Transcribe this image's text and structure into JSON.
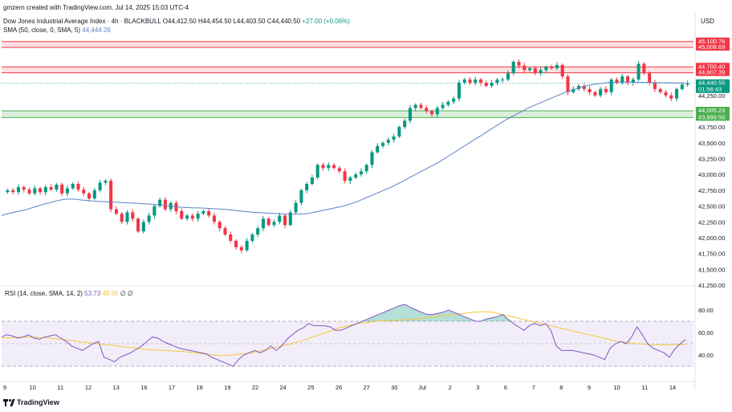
{
  "attribution": "gmzern created with TradingView.com, Jul 14, 2025 15:03 UTC-4",
  "legend": {
    "symbol": "Dow Jones Industrial Average Index · 4h · BLACKBULL",
    "open": "O44,412.50",
    "high": "H44,454.50",
    "low": "L44,403.50",
    "close": "C44,440.50",
    "change": "+27.00 (+0.06%)",
    "sma": "SMA (50, close, 0, SMA, 5)",
    "sma_value": "44,444.26"
  },
  "rsi_legend": {
    "label": "RSI (14, close, SMA, 14, 2)",
    "rsi_value": "53.73",
    "sma_value": "49.35",
    "z1": "∅",
    "z2": "∅"
  },
  "currency": "USD",
  "footer_brand": "TradingView",
  "colors": {
    "up": "#089981",
    "down": "#f23645",
    "sma": "#5b82c7",
    "rsi": "#7e57c2",
    "rsi_ma": "#f5c73c",
    "resistance": "#f23645",
    "support": "#4caf50"
  },
  "price_labels": [
    {
      "value": 45100.76,
      "text": "45,100.76",
      "color": "#f23645"
    },
    {
      "value": 45008.69,
      "text": "45,008.69",
      "color": "#f23645"
    },
    {
      "value": 44700.4,
      "text": "44,700.40",
      "color": "#f23645"
    },
    {
      "value": 44607.39,
      "text": "44,607.39",
      "color": "#f23645"
    },
    {
      "value": 44440.5,
      "text": "44,440.50",
      "color": "#089981",
      "sub": "01:56:43"
    },
    {
      "value": 44005.23,
      "text": "44,005.23",
      "color": "#4caf50"
    },
    {
      "value": 43899.5,
      "text": "43,899.50",
      "color": "#4caf50"
    }
  ],
  "chart_data": [
    {
      "type": "candlestick",
      "title": "Dow Jones Industrial Average Index · 4h · BLACKBULL",
      "ylim": [
        41250,
        45250
      ],
      "y_ticks": [
        "44,250.00",
        "44,000.00",
        "43,750.00",
        "43,500.00",
        "43,250.00",
        "43,000.00",
        "42,750.00",
        "42,500.00",
        "42,250.00",
        "42,000.00",
        "41,750.00",
        "41,500.00",
        "41,250.00"
      ],
      "y_tick_values": [
        44250,
        44000,
        43750,
        43500,
        43250,
        43000,
        42750,
        42500,
        42250,
        42000,
        41750,
        41500,
        41250
      ],
      "x_ticks": [
        "9",
        "10",
        "11",
        "12",
        "13",
        "16",
        "17",
        "18",
        "19",
        "22",
        "24",
        "25",
        "26",
        "27",
        "30",
        "Jul",
        "2",
        "3",
        "6",
        "7",
        "8",
        "9",
        "10",
        "11",
        "14"
      ],
      "resistance_zones": [
        [
          45008.69,
          45100.76
        ],
        [
          44607.39,
          44700.4
        ]
      ],
      "support_zones": [
        [
          43899.5,
          44005.23
        ]
      ],
      "current_price": 44440.5,
      "closes": [
        42750,
        42720,
        42800,
        42760,
        42700,
        42780,
        42720,
        42800,
        42760,
        42840,
        42700,
        42780,
        42850,
        42760,
        42700,
        42620,
        42750,
        42870,
        42900,
        42450,
        42380,
        42250,
        42400,
        42300,
        42100,
        42250,
        42350,
        42500,
        42600,
        42450,
        42550,
        42420,
        42300,
        42350,
        42300,
        42380,
        42420,
        42350,
        42250,
        42150,
        42050,
        41950,
        41850,
        41800,
        41950,
        42050,
        42150,
        42300,
        42200,
        42250,
        42350,
        42200,
        42400,
        42550,
        42750,
        42850,
        42950,
        43150,
        43100,
        43150,
        43100,
        43050,
        42900,
        42950,
        43000,
        43050,
        43150,
        43350,
        43450,
        43500,
        43550,
        43600,
        43750,
        43850,
        44050,
        44100,
        44050,
        44000,
        43950,
        44050,
        44100,
        44150,
        44200,
        44450,
        44500,
        44450,
        44500,
        44450,
        44400,
        44450,
        44500,
        44500,
        44600,
        44780,
        44720,
        44650,
        44680,
        44600,
        44650,
        44700,
        44680,
        44730,
        44550,
        44300,
        44350,
        44400,
        44350,
        44300,
        44250,
        44350,
        44300,
        44500,
        44450,
        44550,
        44450,
        44500,
        44750,
        44600,
        44450,
        44350,
        44300,
        44250,
        44200,
        44350,
        44420,
        44440
      ],
      "sma_values": [
        42350,
        42380,
        42400,
        42420,
        42440,
        42470,
        42500,
        42530,
        42550,
        42580,
        42600,
        42610,
        42610,
        42600,
        42590,
        42580,
        42575,
        42570,
        42565,
        42560,
        42555,
        42550,
        42545,
        42540,
        42535,
        42530,
        42520,
        42510,
        42500,
        42490,
        42480,
        42475,
        42470,
        42470,
        42465,
        42460,
        42455,
        42450,
        42440,
        42430,
        42420,
        42410,
        42400,
        42395,
        42390,
        42385,
        42380,
        42375,
        42370,
        42370,
        42375,
        42380,
        42400,
        42420,
        42440,
        42460,
        42480,
        42500,
        42530,
        42560,
        42600,
        42640,
        42680,
        42720,
        42760,
        42800,
        42850,
        42900,
        42950,
        43000,
        43050,
        43100,
        43150,
        43200,
        43260,
        43320,
        43380,
        43440,
        43500,
        43560,
        43620,
        43680,
        43740,
        43800,
        43860,
        43910,
        43960,
        44010,
        44060,
        44100,
        44140,
        44180,
        44220,
        44260,
        44300,
        44330,
        44360,
        44390,
        44410,
        44430,
        44440,
        44450,
        44455,
        44460,
        44462,
        44460,
        44458,
        44455,
        44452,
        44450,
        44450,
        44450,
        44448,
        44446,
        44444
      ]
    },
    {
      "type": "line",
      "title": "RSI (14, close, SMA, 14, 2)",
      "ylim": [
        20,
        100
      ],
      "y_ticks": [
        "80.00",
        "60.00",
        "40.00"
      ],
      "y_tick_values": [
        80,
        60,
        40
      ],
      "band": [
        30,
        70
      ],
      "series": [
        {
          "name": "RSI",
          "values": [
            56,
            58,
            57,
            55,
            56,
            58,
            55,
            54,
            56,
            57,
            58,
            55,
            52,
            48,
            46,
            44,
            47,
            50,
            52,
            38,
            36,
            34,
            38,
            40,
            42,
            45,
            48,
            52,
            56,
            55,
            52,
            50,
            48,
            46,
            45,
            44,
            43,
            42,
            41,
            38,
            36,
            34,
            32,
            30,
            36,
            40,
            42,
            44,
            42,
            44,
            48,
            44,
            48,
            54,
            58,
            62,
            64,
            68,
            66,
            66,
            66,
            65,
            62,
            62,
            64,
            66,
            68,
            70,
            72,
            74,
            76,
            78,
            80,
            82,
            84,
            85,
            82,
            80,
            78,
            76,
            76,
            77,
            78,
            80,
            78,
            76,
            74,
            72,
            70,
            70,
            72,
            73,
            74,
            76,
            72,
            68,
            65,
            62,
            66,
            68,
            66,
            68,
            62,
            48,
            44,
            44,
            44,
            43,
            42,
            41,
            40,
            38,
            36,
            46,
            50,
            52,
            50,
            56,
            65,
            58,
            50,
            46,
            44,
            42,
            38,
            45,
            50,
            53.73
          ]
        },
        {
          "name": "SMA",
          "values": [
            55,
            55.5,
            56,
            56,
            55.5,
            55,
            54,
            53,
            52,
            51,
            50,
            49,
            48,
            47,
            46,
            45,
            44.5,
            44,
            43.5,
            43,
            42,
            41,
            40,
            39.5,
            40,
            41,
            42,
            44,
            46,
            48,
            50,
            52,
            55,
            58,
            61,
            64,
            66,
            68,
            69,
            70,
            70.5,
            71,
            71.5,
            72,
            73,
            74,
            75,
            76,
            77,
            78,
            78.5,
            78,
            76,
            74,
            72,
            70,
            68,
            66,
            64,
            62,
            60,
            58,
            56,
            54,
            52,
            51,
            50,
            49.5,
            49,
            49,
            49.2,
            49.35
          ]
        }
      ]
    }
  ]
}
